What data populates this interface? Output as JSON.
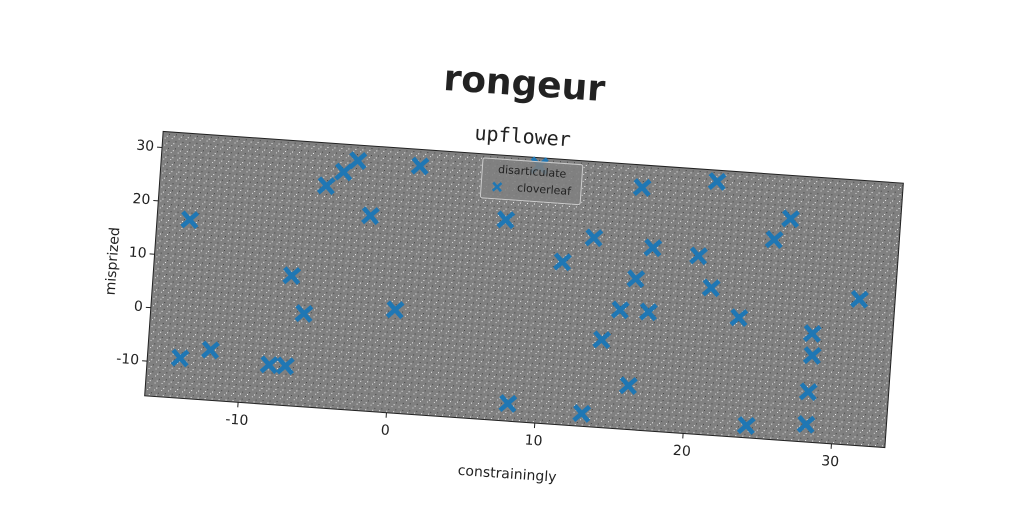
{
  "chart_data": {
    "type": "scatter",
    "title": "rongeur",
    "subtitle": "upflower",
    "x_label": "constrainingly",
    "y_label": "misprized",
    "legend_title": "disarticulate",
    "legend": "upper center",
    "xlim": [
      -16.3,
      33.6
    ],
    "ylim": [
      -16.5,
      33
    ],
    "xticks": [
      -10,
      0,
      10,
      20,
      30
    ],
    "yticks": [
      -10,
      0,
      10,
      20,
      30
    ],
    "series": [
      {
        "name": "cloverleaf",
        "color": "#1f77b4",
        "marker": "X",
        "x": [
          -14.1,
          -14.1,
          -12.1,
          -8.1,
          -7.0,
          -7.0,
          -6.0,
          -5.1,
          -4.0,
          -3.1,
          -2.0,
          0.1,
          1.1,
          7.1,
          8.1,
          9.1,
          11.1,
          13.1,
          13.1,
          14.1,
          15.2,
          16.1,
          16.1,
          16.1,
          17.1,
          17.1,
          20.2,
          21.2,
          21.1,
          23.2,
          24.2,
          25.2,
          26.2,
          28.2,
          28.2,
          28.3,
          28.2,
          31.2
        ],
        "values": [
          16.9,
          -9.0,
          -7.1,
          -9.1,
          -9.1,
          7.8,
          0.9,
          25.0,
          27.8,
          30.1,
          20.0,
          2.8,
          29.9,
          21.0,
          -13.2,
          31.5,
          13.9,
          -14.1,
          18.8,
          -0.1,
          5.7,
          -8.3,
          11.7,
          28.8,
          5.7,
          17.7,
          16.8,
          11.0,
          30.9,
          5.8,
          -14.2,
          20.8,
          24.9,
          -13.2,
          -7.1,
          -0.3,
          3.8,
          10.8
        ]
      }
    ]
  }
}
